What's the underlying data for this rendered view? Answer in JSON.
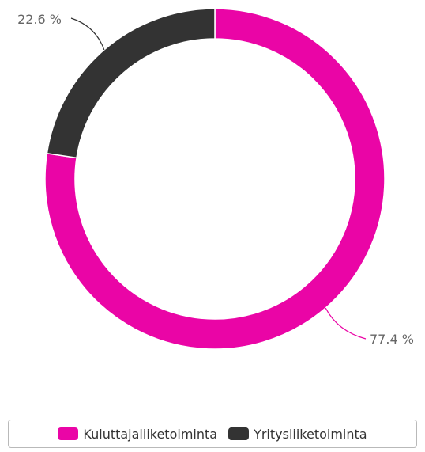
{
  "chart_data": {
    "type": "pie",
    "variant": "donut",
    "title": "",
    "slices": [
      {
        "label": "Kuluttajaliiketoiminta",
        "value": 77.4,
        "display": "77.4 %",
        "color": "#ea05a6"
      },
      {
        "label": "Yritysliiketoiminta",
        "value": 22.6,
        "display": "22.6 %",
        "color": "#333333"
      }
    ],
    "legend_position": "bottom"
  }
}
